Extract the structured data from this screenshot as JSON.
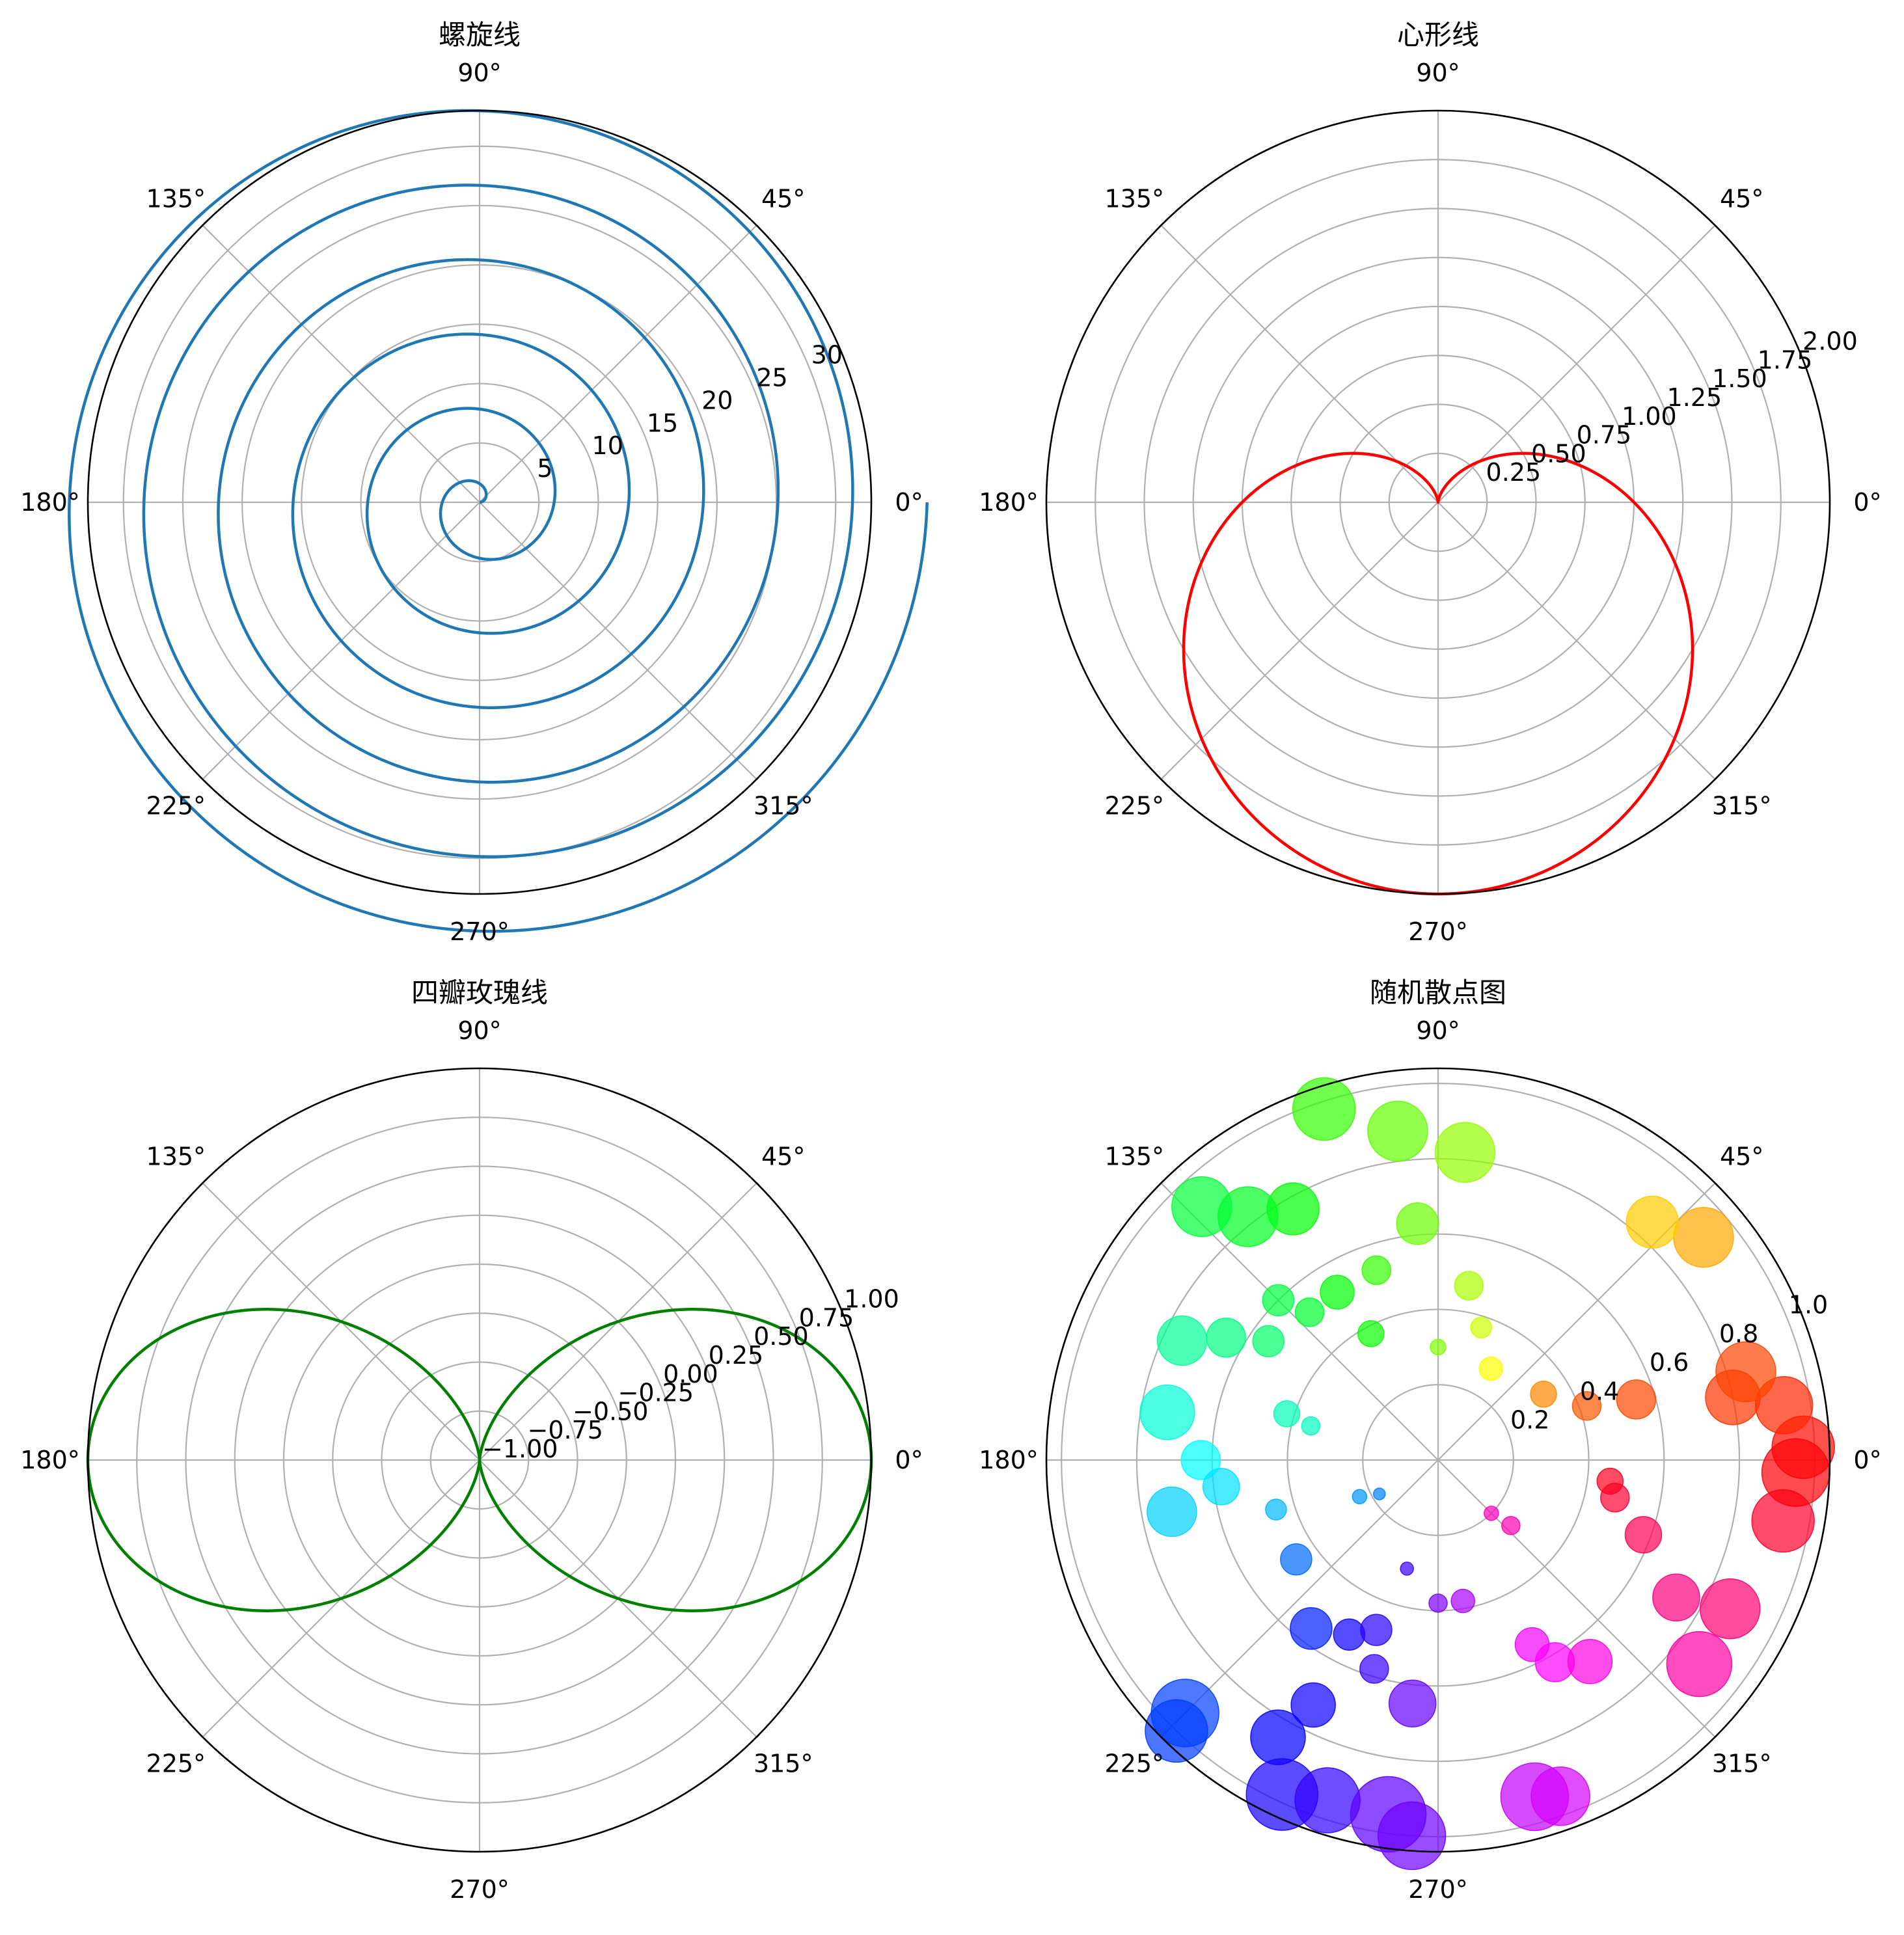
{
  "chart_data": [
    {
      "type": "line",
      "projection": "polar",
      "title": "螺旋线",
      "series": [
        {
          "r": "theta",
          "theta_range_deg": [
            0,
            2160
          ],
          "color": "#1f77b4"
        }
      ],
      "r_ticks": [
        "5",
        "10",
        "15",
        "20",
        "25",
        "30"
      ],
      "rlim": [
        0,
        33
      ],
      "theta_ticks": [
        "0°",
        "45°",
        "90°",
        "135°",
        "180°",
        "225°",
        "270°",
        "315°"
      ],
      "grid": true
    },
    {
      "type": "line",
      "projection": "polar",
      "title": "心形线",
      "series": [
        {
          "r": "1 - sin(theta)",
          "theta_range_deg": [
            0,
            360
          ],
          "color": "#ff0000"
        }
      ],
      "r_ticks": [
        "0.25",
        "0.50",
        "0.75",
        "1.00",
        "1.25",
        "1.50",
        "1.75",
        "2.00"
      ],
      "rlim": [
        0,
        2
      ],
      "theta_ticks": [
        "0°",
        "45°",
        "90°",
        "135°",
        "180°",
        "225°",
        "270°",
        "315°"
      ],
      "grid": true
    },
    {
      "type": "line",
      "projection": "polar",
      "title": "四瓣玫瑰线",
      "series": [
        {
          "r": "cos(2*theta)",
          "theta_range_deg": [
            0,
            360
          ],
          "color": "#008000"
        }
      ],
      "r_ticks": [
        "−1.00",
        "−0.75",
        "−0.50",
        "−0.25",
        "0.00",
        "0.25",
        "0.50",
        "0.75",
        "1.00"
      ],
      "rlim": [
        -1,
        1
      ],
      "theta_ticks": [
        "0°",
        "45°",
        "90°",
        "135°",
        "180°",
        "225°",
        "270°",
        "315°"
      ],
      "grid": true
    },
    {
      "type": "scatter",
      "projection": "polar",
      "title": "随机散点图",
      "colormap": "hsv (color by angle)",
      "alpha": 0.7,
      "points": [
        [
          2,
          0.97,
          48
        ],
        [
          9,
          0.93,
          44
        ],
        [
          12,
          0.8,
          42
        ],
        [
          16,
          0.85,
          46
        ],
        [
          17,
          0.55,
          30
        ],
        [
          20,
          0.42,
          22
        ],
        [
          32,
          0.33,
          20
        ],
        [
          40,
          0.92,
          46
        ],
        [
          48,
          0.85,
          40
        ],
        [
          60,
          0.28,
          18
        ],
        [
          72,
          0.37,
          16
        ],
        [
          80,
          0.47,
          22
        ],
        [
          85,
          0.82,
          46
        ],
        [
          90,
          0.3,
          12
        ],
        [
          95,
          0.63,
          32
        ],
        [
          97,
          0.88,
          46
        ],
        [
          108,
          0.98,
          48
        ],
        [
          108,
          0.53,
          22
        ],
        [
          118,
          0.38,
          20
        ],
        [
          120,
          0.77,
          40
        ],
        [
          121,
          0.52,
          26
        ],
        [
          128,
          0.82,
          46
        ],
        [
          131,
          0.52,
          22
        ],
        [
          133,
          0.92,
          46
        ],
        [
          135,
          0.6,
          24
        ],
        [
          145,
          0.55,
          24
        ],
        [
          150,
          0.65,
          30
        ],
        [
          155,
          0.75,
          38
        ],
        [
          163,
          0.42,
          20
        ],
        [
          165,
          0.35,
          14
        ],
        [
          170,
          0.73,
          42
        ],
        [
          180,
          0.63,
          30
        ],
        [
          187,
          0.58,
          28
        ],
        [
          191,
          0.72,
          38
        ],
        [
          197,
          0.45,
          16
        ],
        [
          205,
          0.23,
          11
        ],
        [
          210,
          0.18,
          9
        ],
        [
          215,
          0.46,
          24
        ],
        [
          225,
          0.95,
          52
        ],
        [
          226,
          1.0,
          48
        ],
        [
          233,
          0.56,
          32
        ],
        [
          240,
          0.85,
          42
        ],
        [
          243,
          0.52,
          24
        ],
        [
          243,
          0.73,
          34
        ],
        [
          245,
          0.98,
          55
        ],
        [
          250,
          0.48,
          24
        ],
        [
          252,
          0.95,
          50
        ],
        [
          253,
          0.58,
          22
        ],
        [
          254,
          0.3,
          10
        ],
        [
          262,
          0.95,
          58
        ],
        [
          264,
          0.65,
          36
        ],
        [
          266,
          1.0,
          52
        ],
        [
          270,
          0.38,
          14
        ],
        [
          280,
          0.38,
          18
        ],
        [
          286,
          0.93,
          52
        ],
        [
          290,
          0.95,
          45
        ],
        [
          297,
          0.55,
          26
        ],
        [
          300,
          0.62,
          30
        ],
        [
          307,
          0.67,
          34
        ],
        [
          315,
          0.2,
          11
        ],
        [
          318,
          0.26,
          14
        ],
        [
          322,
          0.88,
          50
        ],
        [
          330,
          0.73,
          36
        ],
        [
          333,
          0.87,
          46
        ],
        [
          340,
          0.58,
          28
        ],
        [
          348,
          0.48,
          22
        ],
        [
          350,
          0.93,
          48
        ],
        [
          353,
          0.46,
          20
        ],
        [
          358,
          0.95,
          52
        ]
      ],
      "r_ticks": [
        "0.2",
        "0.4",
        "0.6",
        "0.8",
        "1.0"
      ],
      "rlim": [
        0,
        1.04
      ],
      "theta_ticks": [
        "0°",
        "45°",
        "90°",
        "135°",
        "180°",
        "225°",
        "270°",
        "315°"
      ],
      "grid": true
    }
  ]
}
